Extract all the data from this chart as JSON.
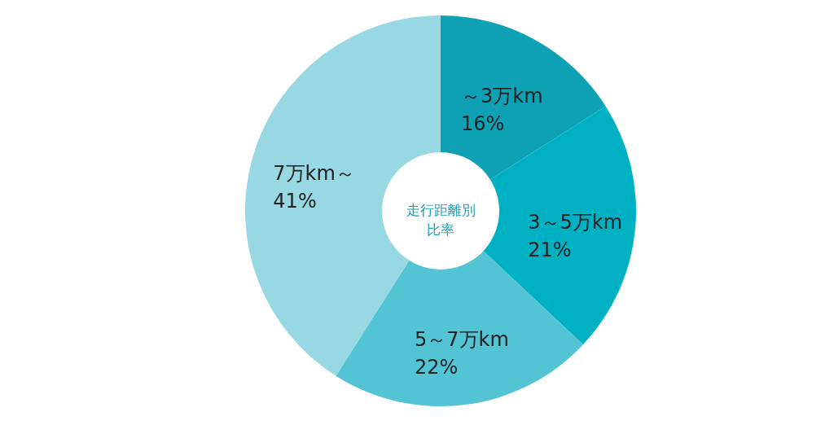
{
  "chart_data": {
    "type": "donut",
    "title": "走行距離別比率",
    "categories": [
      "～3万km",
      "3～5万km",
      "5～7万km",
      "7万km～"
    ],
    "values": [
      16,
      21,
      22,
      41
    ],
    "value_labels": [
      "16%",
      "21%",
      "22%",
      "41%"
    ],
    "colors": [
      "#0ea0b5",
      "#00b1c4",
      "#52c4d3",
      "#97d8e2"
    ]
  }
}
